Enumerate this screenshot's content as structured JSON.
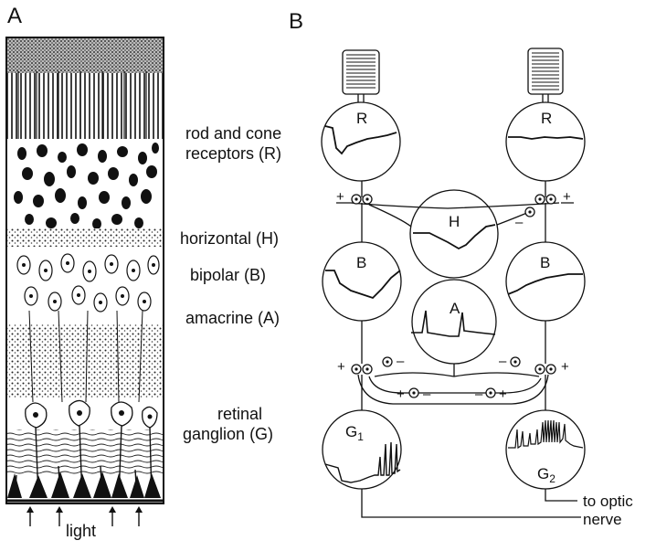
{
  "panels": {
    "a": "A",
    "b": "B"
  },
  "layers": {
    "receptors_line1": "rod and cone",
    "receptors_line2": "receptors (R)",
    "horizontal": "horizontal (H)",
    "bipolar": "bipolar (B)",
    "amacrine": "amacrine (A)",
    "ganglion_line1": "retinal",
    "ganglion_line2": "ganglion (G)"
  },
  "light_label": "light",
  "circuit": {
    "r_left": "R",
    "r_right": "R",
    "h": "H",
    "b_left": "B",
    "b_right": "B",
    "a": "A",
    "g1": "G",
    "g1_sub": "1",
    "g2": "G",
    "g2_sub": "2",
    "plus": "+",
    "minus": "–"
  },
  "optic": {
    "line1": "to optic",
    "line2": "nerve"
  }
}
